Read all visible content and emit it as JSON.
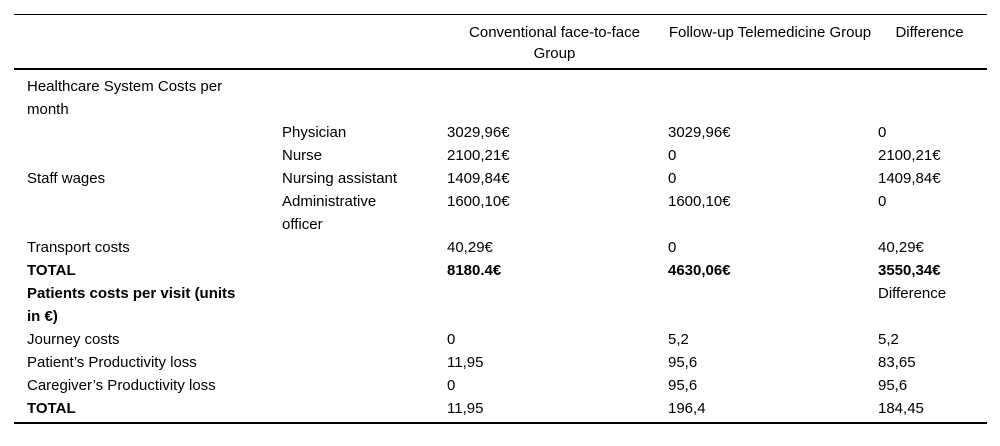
{
  "table": {
    "header": {
      "conventional": "Conventional face-to-face Group",
      "telemedicine": "Follow-up Telemedicine Group",
      "difference": "Difference"
    },
    "rows": [
      {
        "label": "Healthcare System Costs per month",
        "sub": "",
        "conventional": "",
        "telemedicine": "",
        "difference": ""
      },
      {
        "label": "",
        "sub": "Physician",
        "conventional": "3029,96€",
        "telemedicine": "3029,96€",
        "difference": "0"
      },
      {
        "label": "",
        "sub": "Nurse",
        "conventional": "2100,21€",
        "telemedicine": "0",
        "difference": "2100,21€"
      },
      {
        "label": "Staff wages",
        "sub": "Nursing assistant",
        "conventional": "1409,84€",
        "telemedicine": "0",
        "difference": "1409,84€"
      },
      {
        "label": "",
        "sub": "Administrative officer",
        "conventional": "1600,10€",
        "telemedicine": "1600,10€",
        "difference": "0"
      },
      {
        "label": "Transport costs",
        "sub": "",
        "conventional": "40,29€",
        "telemedicine": "0",
        "difference": "40,29€"
      },
      {
        "label": "TOTAL",
        "sub": "",
        "conventional": "8180.4€",
        "telemedicine": "4630,06€",
        "difference": "3550,34€"
      },
      {
        "label": "Patients costs per visit (units in €)",
        "sub": "",
        "conventional": "",
        "telemedicine": "",
        "difference": "Difference"
      },
      {
        "label": "Journey costs",
        "sub": "",
        "conventional": "0",
        "telemedicine": "5,2",
        "difference": "5,2"
      },
      {
        "label": "Patient’s Productivity loss",
        "sub": "",
        "conventional": "11,95",
        "telemedicine": "95,6",
        "difference": "83,65"
      },
      {
        "label": "Caregiver’s Productivity loss",
        "sub": "",
        "conventional": "0",
        "telemedicine": "95,6",
        "difference": "95,6"
      },
      {
        "label": "TOTAL",
        "sub": "",
        "conventional": "11,95",
        "telemedicine": "196,4",
        "difference": "184,45"
      }
    ]
  }
}
